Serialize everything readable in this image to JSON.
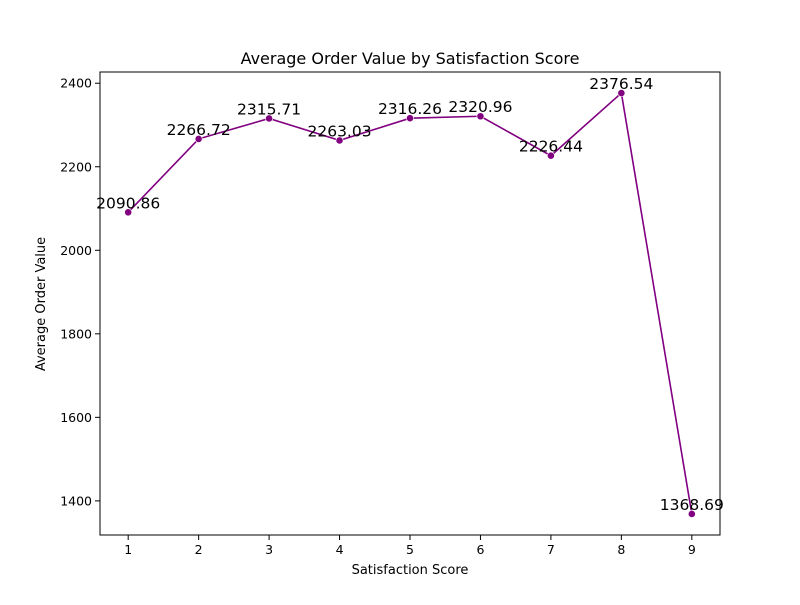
{
  "chart_data": {
    "type": "line",
    "title": "Average Order Value by Satisfaction Score",
    "xlabel": "Satisfaction Score",
    "ylabel": "Average Order Value",
    "x": [
      1,
      2,
      3,
      4,
      5,
      6,
      7,
      8,
      9
    ],
    "series": [
      {
        "values": [
          2090.86,
          2266.72,
          2315.71,
          2263.03,
          2316.26,
          2320.96,
          2226.44,
          2376.54,
          1368.69
        ],
        "labels": [
          "2090.86",
          "2266.72",
          "2315.71",
          "2263.03",
          "2316.26",
          "2320.96",
          "2226.44",
          "2376.54",
          "1368.69"
        ],
        "color": "#800080"
      }
    ],
    "xlim": [
      0.6,
      9.4
    ],
    "ylim": [
      1318.3,
      2426.9
    ],
    "xticks": [
      1,
      2,
      3,
      4,
      5,
      6,
      7,
      8,
      9
    ],
    "yticks": [
      1400,
      1600,
      1800,
      2000,
      2200,
      2400
    ],
    "grid": false,
    "legend": "none"
  }
}
